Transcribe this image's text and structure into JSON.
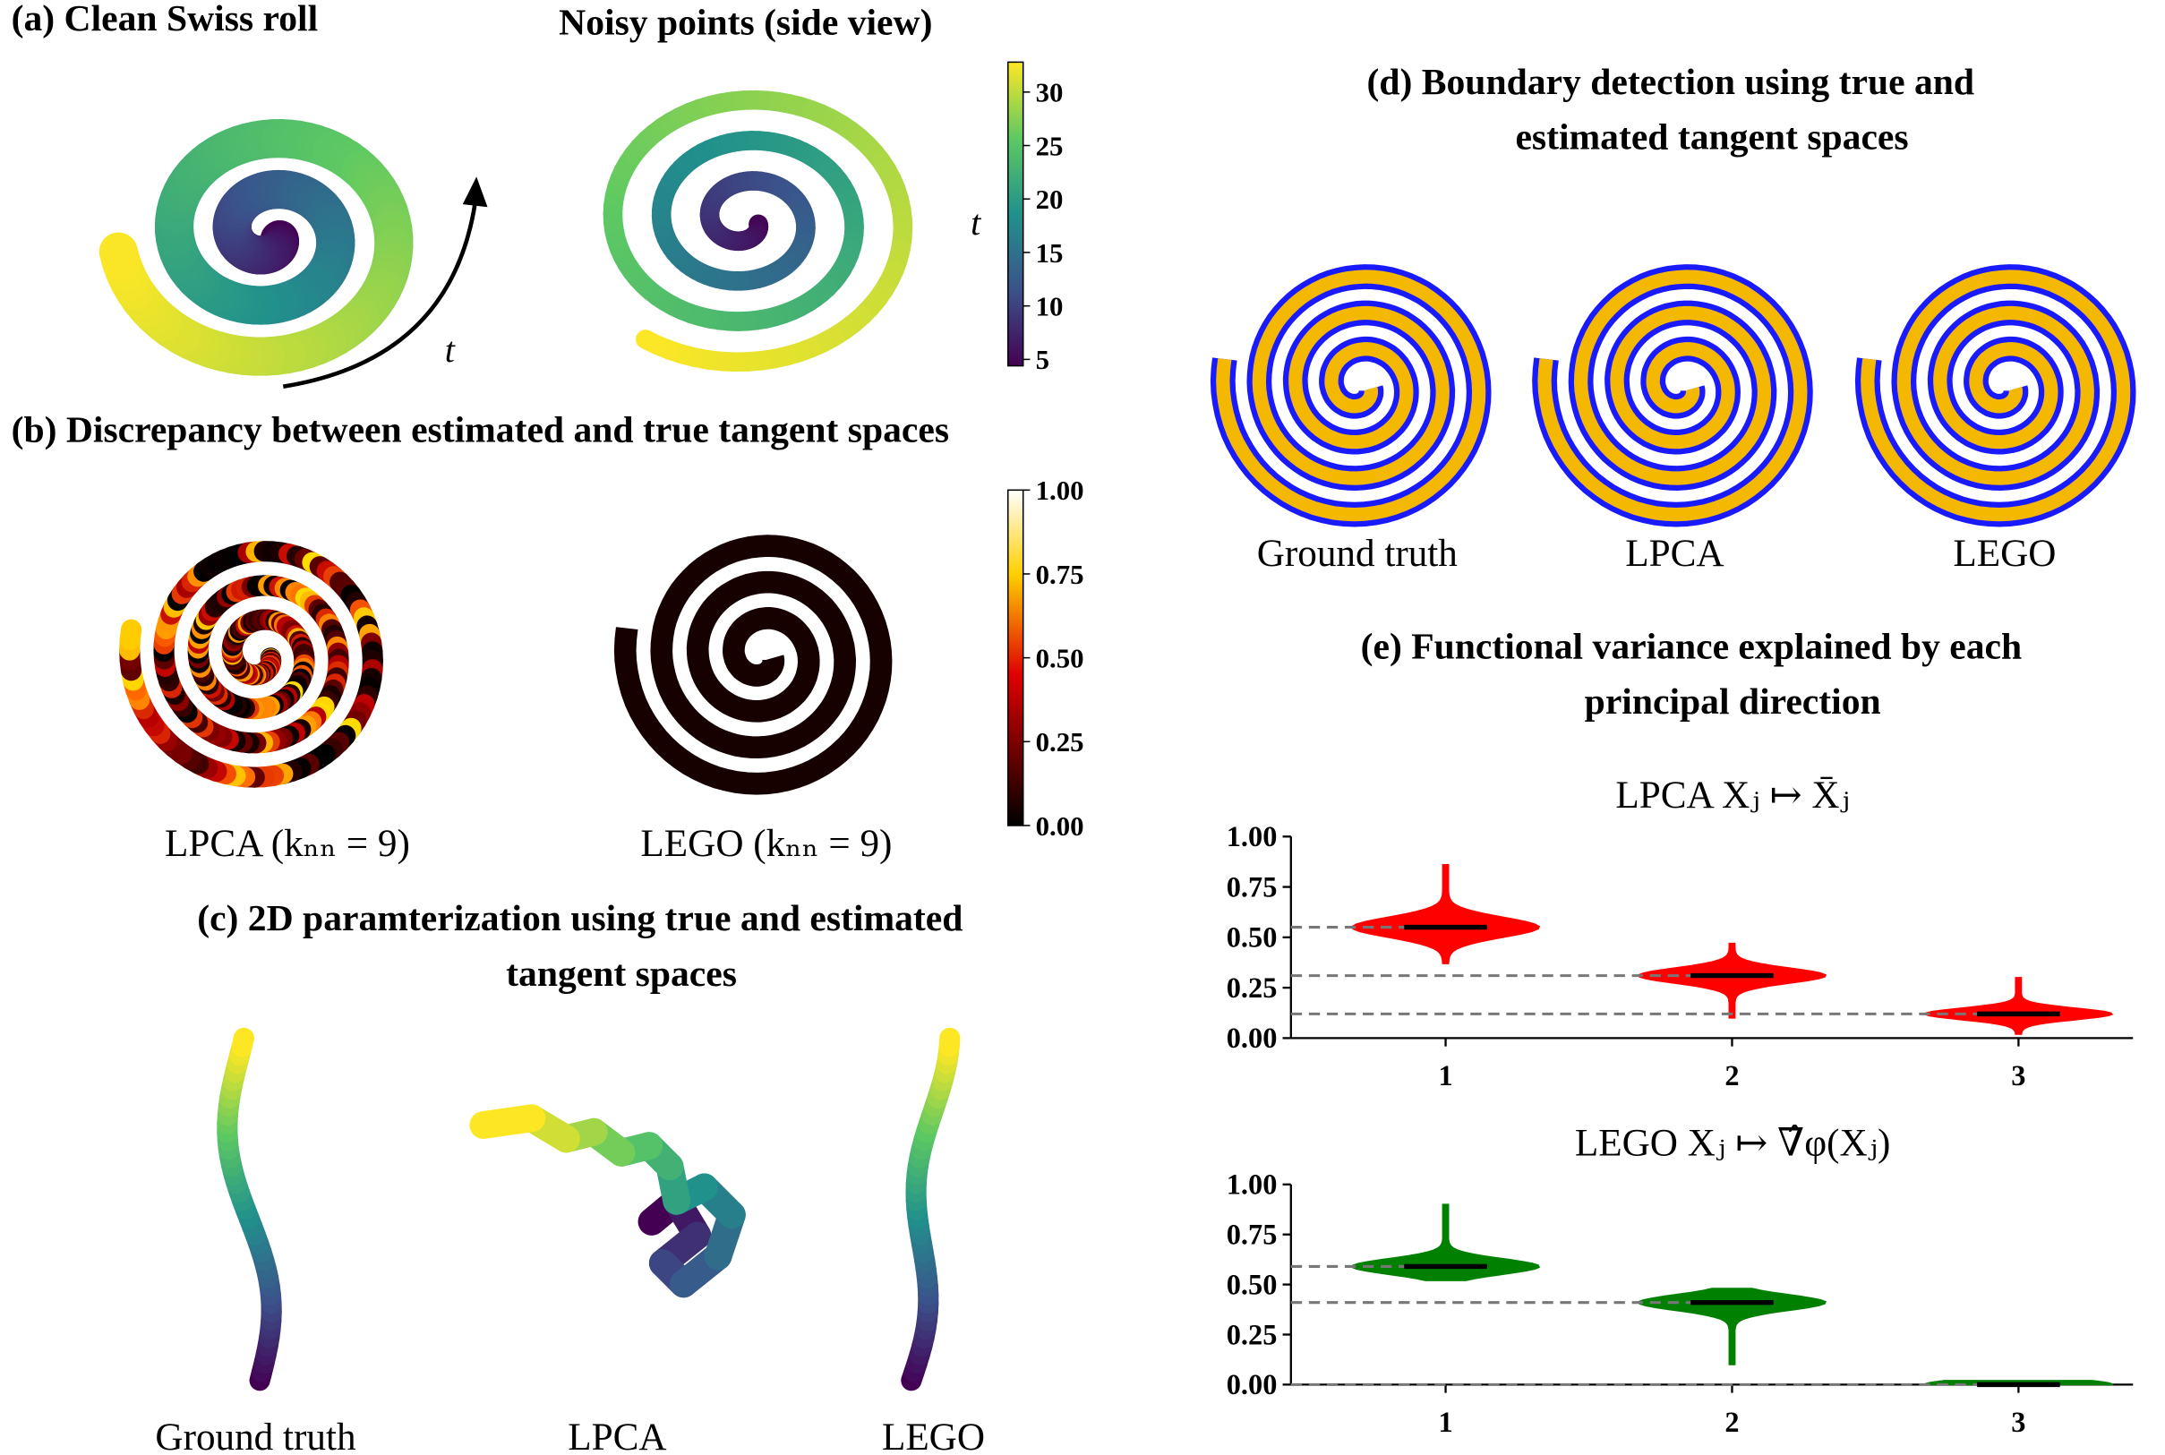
{
  "panel_a": {
    "title": "(a) Clean Swiss roll",
    "subtitle": "Noisy points (side view)",
    "arrow_label": "t",
    "colorbar": {
      "label": "t",
      "lim": [
        4.4,
        32.8
      ],
      "ticks": [
        5,
        10,
        15,
        20,
        25,
        30
      ]
    }
  },
  "panel_b": {
    "title": "(b) Discrepancy between estimated and true tangent spaces",
    "labels": [
      "LPCA (kₙₙ = 9)",
      "LEGO (kₙₙ = 9)"
    ],
    "colorbar": {
      "lim": [
        0,
        1
      ],
      "ticks": [
        {
          "value": 0,
          "label": "0.00"
        },
        {
          "value": 0.25,
          "label": "0.25"
        },
        {
          "value": 0.5,
          "label": "0.50"
        },
        {
          "value": 0.75,
          "label": "0.75"
        },
        {
          "value": 1,
          "label": "1.00"
        }
      ]
    }
  },
  "panel_c": {
    "title": [
      "(c)  2D paramterization using true and estimated",
      "tangent spaces"
    ],
    "labels": [
      "Ground truth",
      "LPCA",
      "LEGO"
    ]
  },
  "panel_d": {
    "title": [
      "(d)  Boundary detection using true and",
      "estimated tangent spaces"
    ],
    "labels": [
      "Ground truth",
      "LPCA",
      "LEGO"
    ]
  },
  "panel_e": {
    "title": [
      "(e)  Functional variance explained by each",
      "principal direction"
    ]
  },
  "chart_data": [
    {
      "type": "violin",
      "title": "LPCA  Xⱼ ↦ X̄ⱼ",
      "categories": [
        "1",
        "2",
        "3"
      ],
      "color": "#ff0000",
      "values": [
        0.55,
        0.31,
        0.12
      ],
      "min": [
        0.37,
        0.1,
        0.02
      ],
      "max": [
        0.86,
        0.47,
        0.3
      ],
      "ylim": [
        0,
        1
      ],
      "yticks": [
        {
          "value": 0,
          "label": "0.00"
        },
        {
          "value": 0.25,
          "label": "0.25"
        },
        {
          "value": 0.5,
          "label": "0.50"
        },
        {
          "value": 0.75,
          "label": "0.75"
        },
        {
          "value": 1,
          "label": "1.00"
        }
      ]
    },
    {
      "type": "violin",
      "title": "LEGO  Xⱼ ↦ ∇̂φ(Xⱼ)",
      "categories": [
        "1",
        "2",
        "3"
      ],
      "color": "#008000",
      "values": [
        0.59,
        0.41,
        0.0
      ],
      "min": [
        0.52,
        0.1,
        0.0
      ],
      "max": [
        0.9,
        0.48,
        0.02
      ],
      "ylim": [
        0,
        1
      ],
      "yticks": [
        {
          "value": 0,
          "label": "0.00"
        },
        {
          "value": 0.25,
          "label": "0.25"
        },
        {
          "value": 0.5,
          "label": "0.50"
        },
        {
          "value": 0.75,
          "label": "0.75"
        },
        {
          "value": 1,
          "label": "1.00"
        }
      ]
    }
  ]
}
